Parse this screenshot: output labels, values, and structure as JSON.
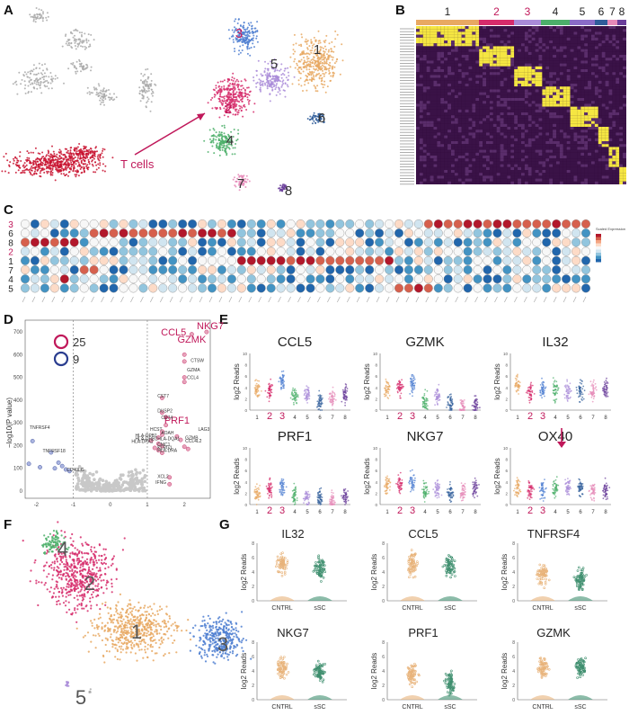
{
  "panels": {
    "A": {
      "letter": "A",
      "annotation": "T cells",
      "clusters": [
        {
          "label": "1",
          "color": "#e8a862"
        },
        {
          "label": "2",
          "color": "#d62b6b"
        },
        {
          "label": "3",
          "color": "#4f7fd1"
        },
        {
          "label": "4",
          "color": "#4caf6a"
        },
        {
          "label": "5",
          "color": "#a98bd8"
        },
        {
          "label": "6",
          "color": "#2f5d9a"
        },
        {
          "label": "7",
          "color": "#e68ab8"
        },
        {
          "label": "8",
          "color": "#6a3d9a"
        }
      ]
    },
    "B": {
      "letter": "B",
      "clusters": [
        {
          "label": "1",
          "color": "#e8a862",
          "label_color": "#222"
        },
        {
          "label": "2",
          "color": "#d62b6b",
          "label_color": "#c0185a"
        },
        {
          "label": "3",
          "color": "#a98bd8",
          "label_color": "#c0185a"
        },
        {
          "label": "4",
          "color": "#4caf6a",
          "label_color": "#222"
        },
        {
          "label": "5",
          "color": "#8a6cc7",
          "label_color": "#222"
        },
        {
          "label": "6",
          "color": "#2f5d9a",
          "label_color": "#222"
        },
        {
          "label": "7",
          "color": "#e68ab8",
          "label_color": "#222"
        },
        {
          "label": "8",
          "color": "#6a3d9a",
          "label_color": "#222"
        }
      ]
    },
    "C": {
      "letter": "C",
      "rows": [
        {
          "label": "3",
          "color": "#c0185a"
        },
        {
          "label": "6",
          "color": "#222"
        },
        {
          "label": "8",
          "color": "#222"
        },
        {
          "label": "2",
          "color": "#c0185a"
        },
        {
          "label": "1",
          "color": "#222"
        },
        {
          "label": "7",
          "color": "#222"
        },
        {
          "label": "4",
          "color": "#222"
        },
        {
          "label": "5",
          "color": "#222"
        }
      ],
      "legend_title": "Scaled Expression"
    },
    "D": {
      "letter": "D",
      "ylabel": "−log10(P value)",
      "legend": [
        {
          "value": "25",
          "color": "#c0185a"
        },
        {
          "value": "9",
          "color": "#2a3d8f"
        }
      ],
      "highlight_genes": [
        "NKG7",
        "CCL5",
        "GZMK",
        "PRF1"
      ],
      "gene_labels": [
        "CTSW",
        "GZMA",
        "CCL4",
        "CST7",
        "DUSP2",
        "CD74",
        "HCST",
        "AOAH",
        "HLA-DPB1",
        "HLA-DRB1",
        "HLA-DPA1",
        "HLA-DQA1",
        "CMC1",
        "KLRG1",
        "HLA-DRA",
        "LAG3",
        "GZMB",
        "CCL4L2",
        "XCL2",
        "IFNG",
        "TNFRSF4",
        "TNFRSF18",
        "CD40LG"
      ],
      "xticks": [
        "-2",
        "-1",
        "0",
        "1",
        "2"
      ],
      "yticks": [
        "0",
        "100",
        "200",
        "300",
        "400",
        "500",
        "600",
        "700"
      ]
    },
    "E": {
      "letter": "E",
      "ylabel": "log2 Reads",
      "marker_gene": "OX40",
      "plots": [
        {
          "title": "CCL5"
        },
        {
          "title": "GZMK"
        },
        {
          "title": "IL32"
        },
        {
          "title": "PRF1"
        },
        {
          "title": "NKG7"
        },
        {
          "title": "OX40"
        }
      ],
      "xcats": [
        "1",
        "2",
        "3",
        "4",
        "5",
        "6",
        "7",
        "8"
      ],
      "yticks": [
        "0",
        "2",
        "4",
        "6",
        "8",
        "10"
      ]
    },
    "F": {
      "letter": "F",
      "clusters": [
        {
          "label": "1",
          "color": "#e8a862"
        },
        {
          "label": "2",
          "color": "#d62b6b"
        },
        {
          "label": "3",
          "color": "#4f7fd1"
        },
        {
          "label": "4",
          "color": "#4caf6a"
        },
        {
          "label": "5",
          "color": "#a98bd8"
        }
      ]
    },
    "G": {
      "letter": "G",
      "ylabel": "log2 Reads",
      "plots": [
        {
          "title": "IL32"
        },
        {
          "title": "CCL5"
        },
        {
          "title": "TNFRSF4"
        },
        {
          "title": "NKG7"
        },
        {
          "title": "PRF1"
        },
        {
          "title": "GZMK"
        }
      ],
      "groups": [
        {
          "label": "CNTRL",
          "color": "#e8b37a"
        },
        {
          "label": "sSC",
          "color": "#3f8f6f"
        }
      ],
      "yticks": [
        "0",
        "2",
        "4",
        "6",
        "8"
      ]
    }
  }
}
